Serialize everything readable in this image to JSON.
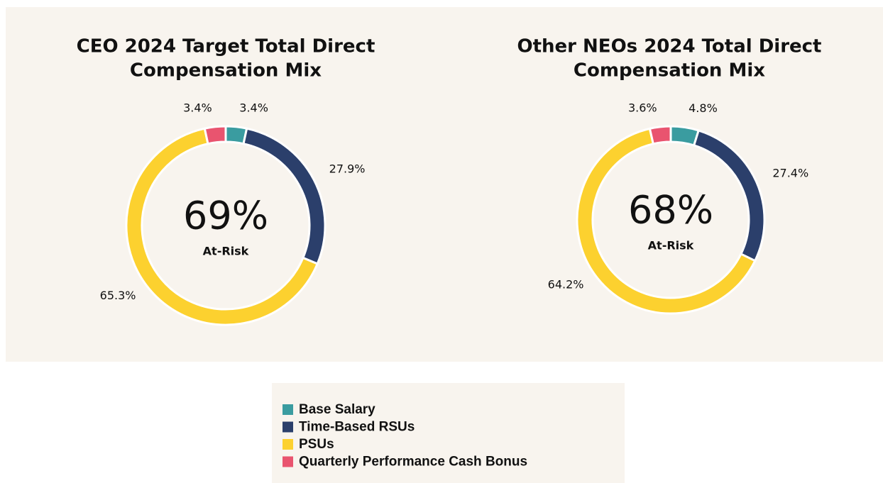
{
  "chart_data": [
    {
      "type": "donut",
      "title": [
        "CEO 2024 Target Total Direct",
        "Compensation Mix"
      ],
      "center_label": "69%",
      "center_sublabel": "At-Risk",
      "categories": [
        "Base Salary",
        "Time-Based RSUs",
        "PSUs",
        "Quarterly Performance Cash Bonus"
      ],
      "values": [
        3.4,
        27.9,
        65.3,
        3.4
      ],
      "value_labels": [
        "3.4%",
        "27.9%",
        "65.3%",
        "3.4%"
      ],
      "colors": [
        "#3a9ca0",
        "#2b3f6b",
        "#fcd12f",
        "#e9546f"
      ]
    },
    {
      "type": "donut",
      "title": [
        "Other NEOs 2024 Total Direct",
        "Compensation Mix"
      ],
      "center_label": "68%",
      "center_sublabel": "At-Risk",
      "categories": [
        "Base Salary",
        "Time-Based RSUs",
        "PSUs",
        "Quarterly Performance Cash Bonus"
      ],
      "values": [
        4.8,
        27.4,
        64.2,
        3.6
      ],
      "value_labels": [
        "4.8%",
        "27.4%",
        "64.2%",
        "3.6%"
      ],
      "colors": [
        "#3a9ca0",
        "#2b3f6b",
        "#fcd12f",
        "#e9546f"
      ]
    }
  ]
}
